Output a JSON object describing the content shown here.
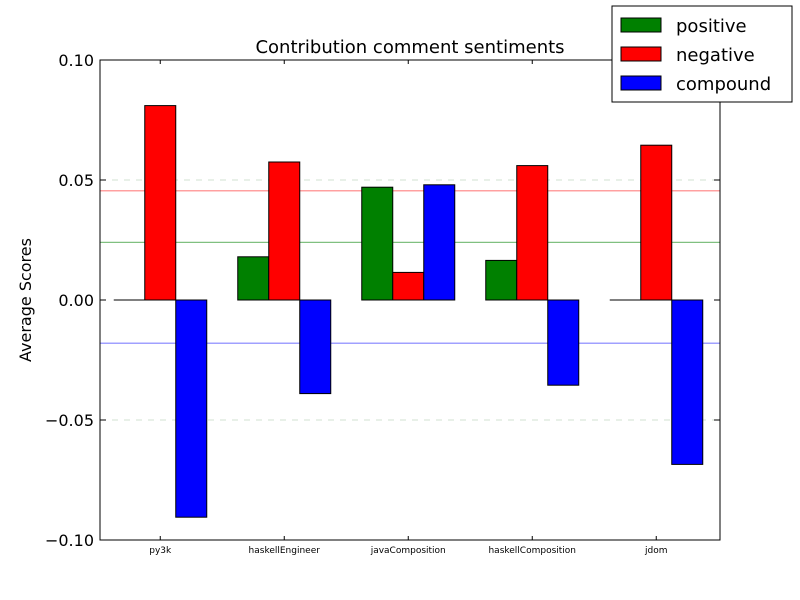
{
  "chart_data": {
    "type": "bar",
    "title": "Contribution comment sentiments",
    "xlabel": "",
    "ylabel": "Average Scores",
    "ylim": [
      -0.1,
      0.1
    ],
    "yticks": [
      {
        "value": 0.1,
        "label": "0.10"
      },
      {
        "value": 0.05,
        "label": "0.05"
      },
      {
        "value": 0.0,
        "label": "0.00"
      },
      {
        "value": -0.05,
        "label": "−0.05"
      },
      {
        "value": -0.1,
        "label": "−0.10"
      }
    ],
    "categories": [
      "py3k",
      "haskellEngineer",
      "javaComposition",
      "haskellComposition",
      "jdom"
    ],
    "series": [
      {
        "name": "positive",
        "color": "#008000",
        "values": [
          0.0,
          0.018,
          0.047,
          0.0165,
          0.0
        ]
      },
      {
        "name": "negative",
        "color": "#ff0000",
        "values": [
          0.081,
          0.0575,
          0.0115,
          0.056,
          0.0645
        ]
      },
      {
        "name": "compound",
        "color": "#0000ff",
        "values": [
          -0.0905,
          -0.039,
          0.048,
          -0.0355,
          -0.0685
        ]
      }
    ],
    "reference_lines": [
      {
        "series": "negative",
        "value": 0.0455,
        "color": "#ff8080"
      },
      {
        "series": "positive",
        "value": 0.024,
        "color": "#80c080"
      },
      {
        "series": "compound",
        "value": -0.018,
        "color": "#8080ff"
      }
    ],
    "grid": "y-dashed",
    "legend": "top-right"
  }
}
